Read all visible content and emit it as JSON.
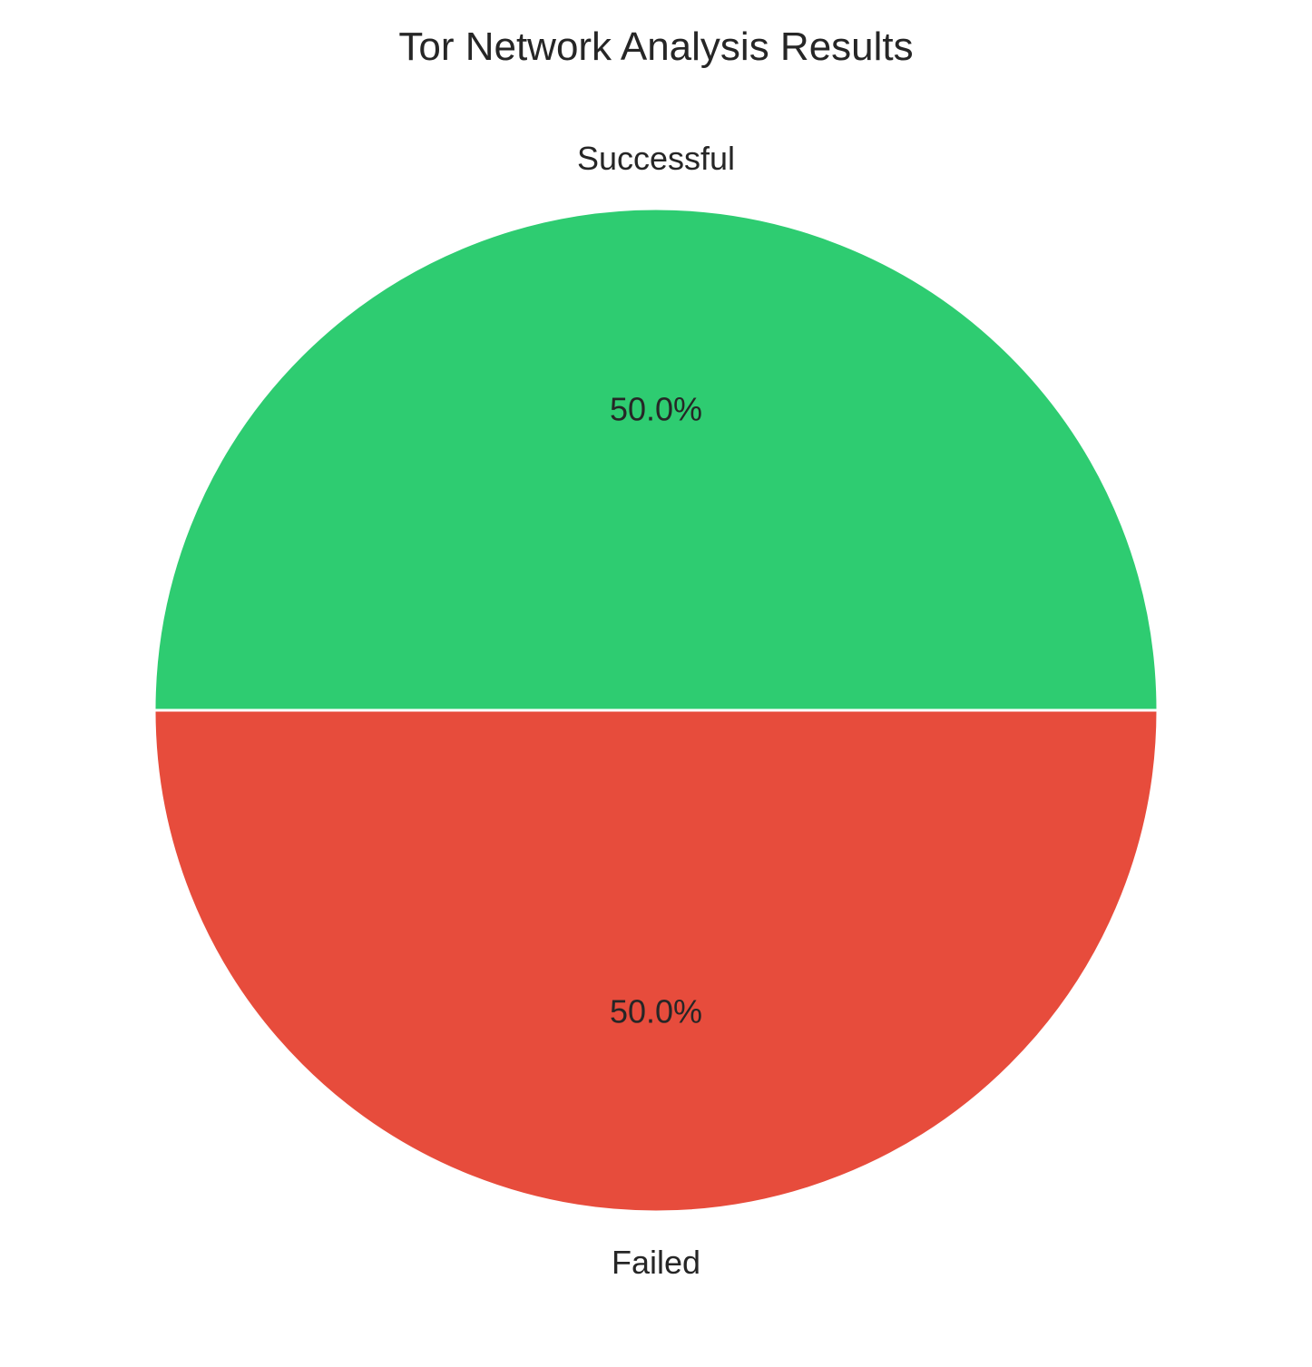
{
  "chart_data": {
    "type": "pie",
    "title": "Tor Network Analysis Results",
    "start_angle": 0,
    "direction": "counterclockwise",
    "slices": [
      {
        "label": "Successful",
        "value": 50,
        "pct_label": "50.0%",
        "color": "#2ecc71"
      },
      {
        "label": "Failed",
        "value": 50,
        "pct_label": "50.0%",
        "color": "#e74c3c"
      }
    ],
    "edge_color": "#ffffff"
  }
}
